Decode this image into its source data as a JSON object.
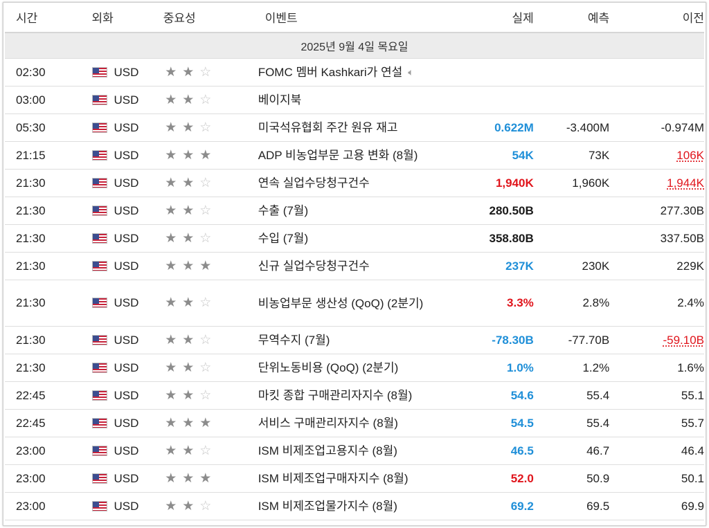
{
  "headers": {
    "time": "시간",
    "currency": "외화",
    "importance": "중요성",
    "event": "이벤트",
    "actual": "실제",
    "forecast": "예측",
    "previous": "이전"
  },
  "date_row": "2025년 9월 4일 목요일",
  "icons": {
    "flag": "us-flag-icon",
    "star": "star-icon",
    "speech": "speaker-icon"
  },
  "rows": [
    {
      "time": "02:30",
      "currency": "USD",
      "importance": 2,
      "event": "FOMC 멤버 Kashkari가 연설",
      "speech": true,
      "actual": "",
      "actual_color": "",
      "forecast": "",
      "previous": "",
      "previous_color": ""
    },
    {
      "time": "03:00",
      "currency": "USD",
      "importance": 2,
      "event": "베이지북",
      "speech": false,
      "actual": "",
      "actual_color": "",
      "forecast": "",
      "previous": "",
      "previous_color": ""
    },
    {
      "time": "05:30",
      "currency": "USD",
      "importance": 2,
      "event": "미국석유협회 주간 원유 재고",
      "speech": false,
      "actual": "0.622M",
      "actual_color": "blue",
      "forecast": "-3.400M",
      "previous": "-0.974M",
      "previous_color": ""
    },
    {
      "time": "21:15",
      "currency": "USD",
      "importance": 3,
      "event": "ADP 비농업부문 고용 변화 (8월)",
      "speech": false,
      "actual": "54K",
      "actual_color": "blue",
      "forecast": "73K",
      "previous": "106K",
      "previous_color": "red"
    },
    {
      "time": "21:30",
      "currency": "USD",
      "importance": 2,
      "event": "연속 실업수당청구건수",
      "speech": false,
      "actual": "1,940K",
      "actual_color": "red",
      "forecast": "1,960K",
      "previous": "1,944K",
      "previous_color": "red"
    },
    {
      "time": "21:30",
      "currency": "USD",
      "importance": 2,
      "event": "수출 (7월)",
      "speech": false,
      "actual": "280.50B",
      "actual_color": "bold",
      "forecast": "",
      "previous": "277.30B",
      "previous_color": ""
    },
    {
      "time": "21:30",
      "currency": "USD",
      "importance": 2,
      "event": "수입 (7월)",
      "speech": false,
      "actual": "358.80B",
      "actual_color": "bold",
      "forecast": "",
      "previous": "337.50B",
      "previous_color": ""
    },
    {
      "time": "21:30",
      "currency": "USD",
      "importance": 3,
      "event": "신규 실업수당청구건수",
      "speech": false,
      "actual": "237K",
      "actual_color": "blue",
      "forecast": "230K",
      "previous": "229K",
      "previous_color": ""
    },
    {
      "time": "21:30",
      "currency": "USD",
      "importance": 2,
      "event": "비농업부문 생산성 (QoQ) (2분기)",
      "speech": false,
      "actual": "3.3%",
      "actual_color": "red",
      "forecast": "2.8%",
      "previous": "2.4%",
      "previous_color": "",
      "tall": true
    },
    {
      "time": "21:30",
      "currency": "USD",
      "importance": 2,
      "event": "무역수지 (7월)",
      "speech": false,
      "actual": "-78.30B",
      "actual_color": "blue",
      "forecast": "-77.70B",
      "previous": "-59.10B",
      "previous_color": "red"
    },
    {
      "time": "21:30",
      "currency": "USD",
      "importance": 2,
      "event": "단위노동비용 (QoQ) (2분기)",
      "speech": false,
      "actual": "1.0%",
      "actual_color": "blue",
      "forecast": "1.2%",
      "previous": "1.6%",
      "previous_color": ""
    },
    {
      "time": "22:45",
      "currency": "USD",
      "importance": 2,
      "event": "마킷 종합 구매관리자지수 (8월)",
      "speech": false,
      "actual": "54.6",
      "actual_color": "blue",
      "forecast": "55.4",
      "previous": "55.1",
      "previous_color": ""
    },
    {
      "time": "22:45",
      "currency": "USD",
      "importance": 3,
      "event": "서비스 구매관리자지수 (8월)",
      "speech": false,
      "actual": "54.5",
      "actual_color": "blue",
      "forecast": "55.4",
      "previous": "55.7",
      "previous_color": ""
    },
    {
      "time": "23:00",
      "currency": "USD",
      "importance": 2,
      "event": "ISM 비제조업고용지수 (8월)",
      "speech": false,
      "actual": "46.5",
      "actual_color": "blue",
      "forecast": "46.7",
      "previous": "46.4",
      "previous_color": ""
    },
    {
      "time": "23:00",
      "currency": "USD",
      "importance": 3,
      "event": "ISM 비제조업구매자지수 (8월)",
      "speech": false,
      "actual": "52.0",
      "actual_color": "red",
      "forecast": "50.9",
      "previous": "50.1",
      "previous_color": ""
    },
    {
      "time": "23:00",
      "currency": "USD",
      "importance": 2,
      "event": "ISM 비제조업물가지수 (8월)",
      "speech": false,
      "actual": "69.2",
      "actual_color": "blue",
      "forecast": "69.5",
      "previous": "69.9",
      "previous_color": ""
    }
  ]
}
